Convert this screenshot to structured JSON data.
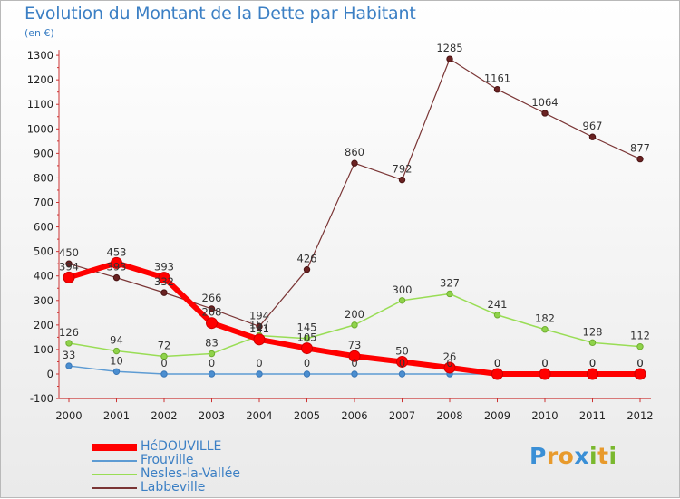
{
  "header": {
    "title": "Evolution du Montant de la Dette par Habitant",
    "unit": "(en €)"
  },
  "logo": {
    "text": "Proxiti",
    "letters": [
      "P",
      "r",
      "o",
      "x",
      "i",
      "t",
      "i"
    ],
    "colors": [
      "#3a8fd6",
      "#e89a2c",
      "#e89a2c",
      "#3a8fd6",
      "#7ab82e",
      "#e89a2c",
      "#7ab82e"
    ]
  },
  "chart_data": {
    "type": "line",
    "title": "Evolution du Montant de la Dette par Habitant",
    "ylabel": "(en €)",
    "xlabel": "",
    "x": [
      "2000",
      "2001",
      "2002",
      "2003",
      "2004",
      "2005",
      "2006",
      "2007",
      "2008",
      "2009",
      "2010",
      "2011",
      "2012"
    ],
    "ylim": [
      -100,
      1300
    ],
    "yticks": [
      -100,
      0,
      100,
      200,
      300,
      400,
      500,
      600,
      700,
      800,
      900,
      1000,
      1100,
      1200,
      1300
    ],
    "grid": false,
    "legend": "bottom-left",
    "series": [
      {
        "name": "HéDOUVILLE",
        "color": "#ff0000",
        "values": [
          394,
          453,
          393,
          208,
          141,
          105,
          73,
          50,
          26,
          0,
          0,
          0,
          0
        ],
        "labels": [
          "394",
          "453",
          "393",
          "208",
          "141",
          "105",
          "73",
          "50",
          "26",
          "0",
          "0",
          "0",
          "0"
        ]
      },
      {
        "name": "Frouville",
        "color": "#5d9bd3",
        "values": [
          33,
          10,
          0,
          0,
          0,
          0,
          0,
          0,
          0,
          0,
          0,
          0,
          0
        ],
        "labels": [
          "33",
          "10",
          "0",
          "0",
          "0",
          "0",
          "0",
          "0",
          "0",
          "0",
          "0",
          "0",
          "0"
        ]
      },
      {
        "name": "Nesles-la-Vallée",
        "color": "#99dd55",
        "values": [
          126,
          94,
          72,
          83,
          157,
          145,
          200,
          300,
          327,
          241,
          182,
          128,
          112
        ],
        "labels": [
          "126",
          "94",
          "72",
          "83",
          "157",
          "145",
          "200",
          "300",
          "327",
          "241",
          "182",
          "128",
          "112"
        ]
      },
      {
        "name": "Labbeville",
        "color": "#7a3535",
        "values": [
          450,
          393,
          332,
          266,
          194,
          426,
          860,
          792,
          1285,
          1161,
          1064,
          967,
          877
        ],
        "labels": [
          "450",
          "393",
          "332",
          "266",
          "194",
          "426",
          "860",
          "792",
          "1285",
          "1161",
          "1064",
          "967",
          "877"
        ]
      }
    ]
  }
}
